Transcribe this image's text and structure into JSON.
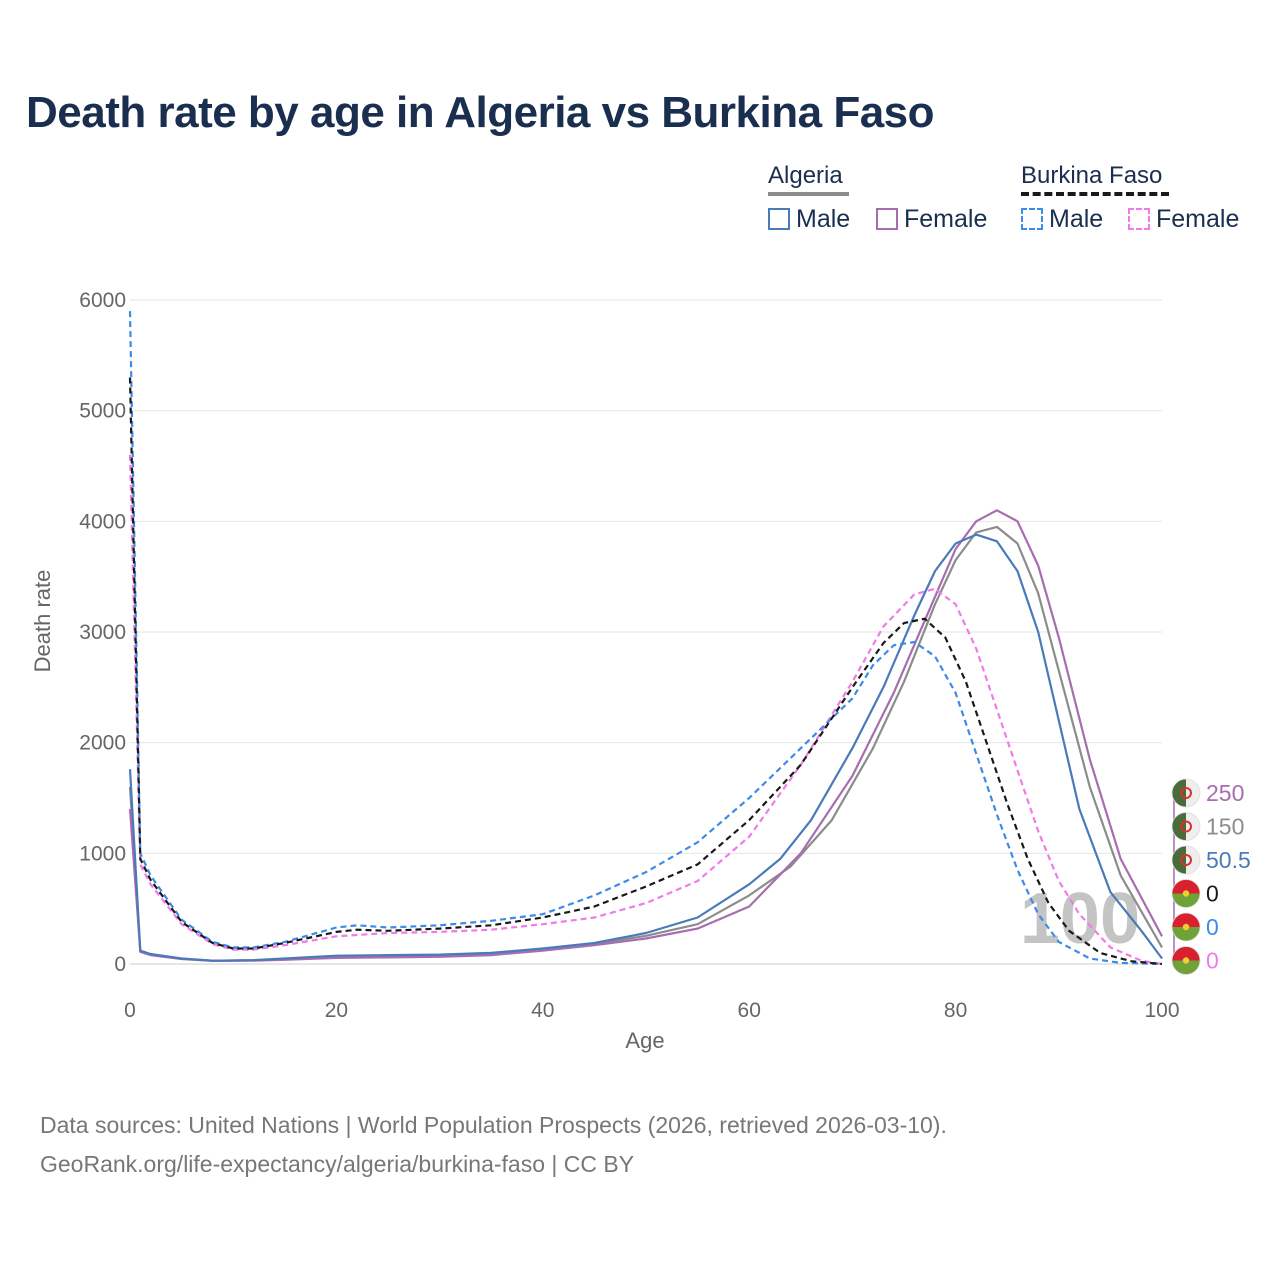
{
  "chart_data": {
    "type": "line",
    "title": "Death rate by age in Algeria vs Burkina Faso",
    "xlabel": "Age",
    "ylabel": "Death rate",
    "xlim": [
      0,
      100
    ],
    "ylim": [
      0,
      6000
    ],
    "xticks": [
      0,
      20,
      40,
      60,
      80,
      100
    ],
    "yticks": [
      0,
      1000,
      2000,
      3000,
      4000,
      5000,
      6000
    ],
    "current_age": "100",
    "legend": {
      "groups": [
        {
          "name": "Algeria",
          "items": [
            "Male",
            "Female"
          ]
        },
        {
          "name": "Burkina Faso",
          "items": [
            "Male",
            "Female"
          ]
        }
      ]
    },
    "series": [
      {
        "id": "alg-male",
        "name": "Algeria Male",
        "color": "#4a7ab8",
        "dashed": false,
        "end_value": "50.5",
        "x": [
          0,
          1,
          2,
          5,
          8,
          12,
          15,
          20,
          25,
          30,
          35,
          40,
          45,
          50,
          55,
          60,
          63,
          66,
          70,
          73,
          76,
          78,
          80,
          82,
          84,
          86,
          88,
          90,
          92,
          95,
          98,
          100
        ],
        "y": [
          1760,
          120,
          90,
          50,
          30,
          35,
          50,
          75,
          80,
          85,
          100,
          140,
          190,
          280,
          420,
          720,
          950,
          1300,
          1950,
          2500,
          3150,
          3550,
          3800,
          3880,
          3820,
          3550,
          3000,
          2200,
          1400,
          650,
          300,
          50
        ]
      },
      {
        "id": "alg-avg",
        "name": "Algeria",
        "color": "#8c8c8c",
        "dashed": false,
        "end_value": "150",
        "x": [
          0,
          1,
          2,
          5,
          8,
          12,
          15,
          20,
          25,
          30,
          35,
          40,
          45,
          50,
          55,
          60,
          64,
          68,
          72,
          75,
          78,
          80,
          82,
          84,
          86,
          88,
          90,
          93,
          96,
          100
        ],
        "y": [
          1600,
          115,
          85,
          48,
          30,
          33,
          45,
          65,
          70,
          75,
          90,
          130,
          180,
          255,
          360,
          620,
          880,
          1300,
          1950,
          2550,
          3250,
          3650,
          3900,
          3950,
          3800,
          3350,
          2650,
          1600,
          800,
          150
        ]
      },
      {
        "id": "alg-female",
        "name": "Algeria Female",
        "color": "#a86cb0",
        "dashed": false,
        "end_value": "250",
        "x": [
          0,
          1,
          2,
          5,
          8,
          12,
          15,
          20,
          25,
          30,
          35,
          40,
          45,
          50,
          55,
          60,
          65,
          70,
          74,
          77,
          80,
          82,
          84,
          86,
          88,
          90,
          93,
          96,
          100
        ],
        "y": [
          1400,
          110,
          80,
          45,
          28,
          30,
          38,
          55,
          60,
          65,
          80,
          120,
          170,
          230,
          320,
          520,
          1000,
          1700,
          2450,
          3100,
          3750,
          4000,
          4100,
          4000,
          3600,
          2950,
          1850,
          950,
          250
        ]
      },
      {
        "id": "bf-male",
        "name": "Burkina Faso Male",
        "color": "#3d8be8",
        "dashed": true,
        "end_value": "0",
        "x": [
          0,
          1,
          2,
          5,
          8,
          10,
          12,
          15,
          20,
          22,
          25,
          30,
          35,
          40,
          45,
          50,
          55,
          60,
          65,
          70,
          72,
          74,
          76,
          78,
          80,
          82,
          84,
          86,
          88,
          90,
          93,
          96,
          100
        ],
        "y": [
          5900,
          1000,
          800,
          400,
          200,
          150,
          150,
          200,
          330,
          350,
          330,
          350,
          390,
          450,
          620,
          830,
          1100,
          1500,
          1950,
          2400,
          2700,
          2880,
          2910,
          2780,
          2450,
          1900,
          1350,
          850,
          450,
          200,
          50,
          10,
          0
        ]
      },
      {
        "id": "bf-avg",
        "name": "Burkina Faso",
        "color": "#1a1a1a",
        "dashed": true,
        "end_value": "0",
        "x": [
          0,
          1,
          2,
          5,
          8,
          10,
          12,
          15,
          20,
          22,
          25,
          30,
          35,
          40,
          45,
          50,
          55,
          60,
          65,
          70,
          73,
          75,
          77,
          79,
          81,
          83,
          85,
          87,
          89,
          91,
          94,
          97,
          100
        ],
        "y": [
          5300,
          950,
          760,
          380,
          190,
          140,
          140,
          190,
          290,
          310,
          300,
          320,
          350,
          420,
          520,
          700,
          900,
          1300,
          1800,
          2500,
          2900,
          3080,
          3120,
          2950,
          2550,
          2000,
          1450,
          950,
          550,
          300,
          100,
          25,
          0
        ]
      },
      {
        "id": "bf-female",
        "name": "Burkina Faso Female",
        "color": "#f07be8",
        "dashed": true,
        "end_value": "0",
        "x": [
          0,
          1,
          2,
          5,
          8,
          10,
          12,
          15,
          20,
          25,
          30,
          35,
          40,
          45,
          50,
          55,
          60,
          65,
          70,
          73,
          76,
          78,
          80,
          82,
          84,
          86,
          88,
          90,
          92,
          95,
          98,
          100
        ],
        "y": [
          4600,
          900,
          720,
          360,
          180,
          130,
          130,
          170,
          250,
          280,
          290,
          310,
          360,
          420,
          550,
          750,
          1150,
          1800,
          2550,
          3050,
          3340,
          3390,
          3250,
          2850,
          2300,
          1750,
          1200,
          750,
          450,
          150,
          30,
          0
        ]
      }
    ],
    "end_labels": [
      {
        "value": "250",
        "flag": "algeria",
        "color": "#a86cb0"
      },
      {
        "value": "150",
        "flag": "algeria",
        "color": "#8c8c8c"
      },
      {
        "value": "50.5",
        "flag": "algeria",
        "color": "#4a7ab8"
      },
      {
        "value": "0",
        "flag": "burkina-faso",
        "color": "#1a1a1a"
      },
      {
        "value": "0",
        "flag": "burkina-faso",
        "color": "#3d8be8"
      },
      {
        "value": "0",
        "flag": "burkina-faso",
        "color": "#f07be8"
      }
    ]
  },
  "legend": {
    "algeria": {
      "title": "Algeria",
      "male": "Male",
      "female": "Female",
      "male_color": "#4a7ab8",
      "female_color": "#a86cb0",
      "line_color": "#8c8c8c"
    },
    "burkina": {
      "title": "Burkina Faso",
      "male": "Male",
      "female": "Female",
      "male_color": "#3d8be8",
      "female_color": "#f07be8",
      "line_color": "#1a1a1a"
    }
  },
  "footer": {
    "line1": "Data sources: United Nations | World Population Prospects (2026, retrieved 2026-03-10).",
    "line2": "GeoRank.org/life-expectancy/algeria/burkina-faso | CC BY"
  }
}
